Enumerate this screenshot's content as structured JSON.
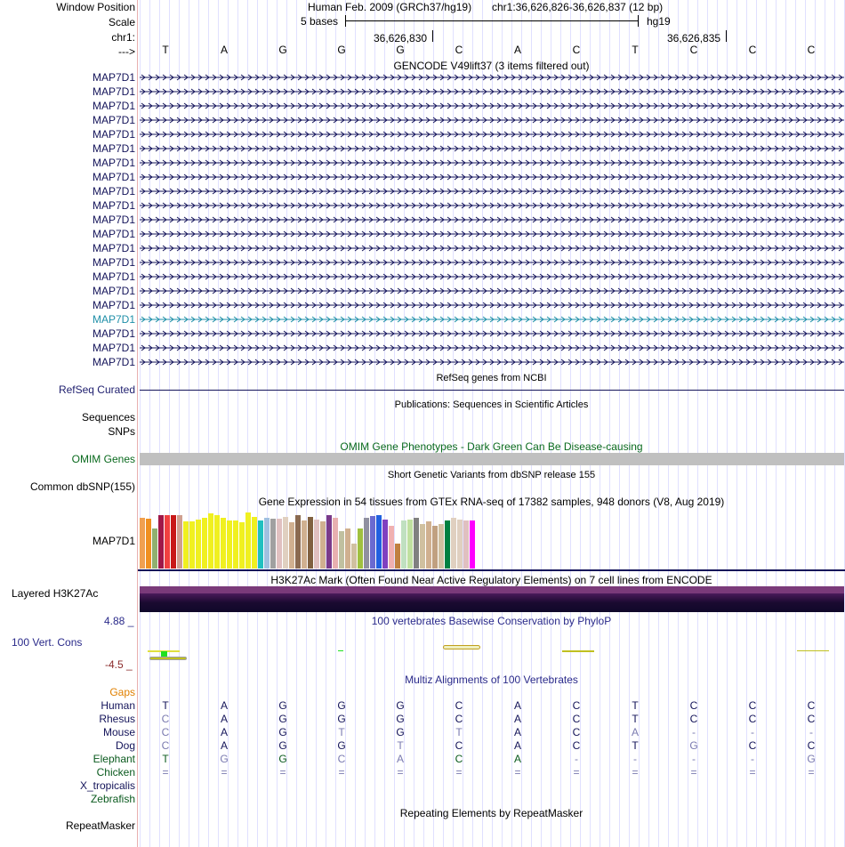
{
  "header": {
    "window_position_label": "Window Position",
    "assembly": "Human Feb. 2009 (GRCh37/hg19)",
    "position": "chr1:36,626,826-36,626,837 (12 bp)",
    "scale_label": "Scale",
    "scale_text": "5 bases",
    "db": "hg19",
    "chrom_label": "chr1:",
    "coord1": "36,626,830",
    "coord2": "36,626,835",
    "strand_label": "--->",
    "sequence": [
      "T",
      "A",
      "G",
      "G",
      "G",
      "C",
      "A",
      "C",
      "T",
      "C",
      "C",
      "C"
    ]
  },
  "gencode": {
    "title": "GENCODE V49lift37 (3 items filtered out)",
    "gene": "MAP7D1",
    "count": 21,
    "highlight_index": 17,
    "colors": {
      "normal": "#14145a",
      "highlight": "#1f8fa8"
    }
  },
  "refseq": {
    "title": "RefSeq genes from NCBI",
    "label": "RefSeq Curated"
  },
  "publications": {
    "title": "Publications: Sequences in Scientific Articles",
    "label": "Sequences"
  },
  "snps": {
    "label": "SNPs"
  },
  "omim": {
    "title": "OMIM Gene Phenotypes - Dark Green Can Be Disease-causing",
    "label": "OMIM Genes",
    "color": "#0a6a1e"
  },
  "dbsnp": {
    "title": "Short Genetic Variants from dbSNP release 155",
    "label": "Common dbSNP(155)"
  },
  "gtex": {
    "title": "Gene Expression in 54 tissues from GTEx RNA-seq of 17382 samples, 948 donors (V8, Aug 2019)",
    "label": "MAP7D1",
    "bars": [
      {
        "v": 0.95,
        "c": "#f0a050"
      },
      {
        "v": 0.94,
        "c": "#f09020"
      },
      {
        "v": 0.75,
        "c": "#90b070"
      },
      {
        "v": 1.0,
        "c": "#a01848"
      },
      {
        "v": 1.0,
        "c": "#f04040"
      },
      {
        "v": 1.0,
        "c": "#c81818"
      },
      {
        "v": 1.0,
        "c": "#d0a090"
      },
      {
        "v": 0.88,
        "c": "#f0f020"
      },
      {
        "v": 0.88,
        "c": "#f0f020"
      },
      {
        "v": 0.92,
        "c": "#f0f020"
      },
      {
        "v": 0.95,
        "c": "#f0f020"
      },
      {
        "v": 1.04,
        "c": "#f0f020"
      },
      {
        "v": 1.0,
        "c": "#f0f020"
      },
      {
        "v": 0.95,
        "c": "#f0f020"
      },
      {
        "v": 0.9,
        "c": "#f0f020"
      },
      {
        "v": 0.9,
        "c": "#f0f020"
      },
      {
        "v": 0.87,
        "c": "#f0f020"
      },
      {
        "v": 1.05,
        "c": "#f0f020"
      },
      {
        "v": 0.97,
        "c": "#f0f020"
      },
      {
        "v": 0.9,
        "c": "#20c0c0"
      },
      {
        "v": 0.95,
        "c": "#a0c0e0"
      },
      {
        "v": 0.94,
        "c": "#a0a0a0"
      },
      {
        "v": 0.94,
        "c": "#e0c0c0"
      },
      {
        "v": 0.96,
        "c": "#e0d0c0"
      },
      {
        "v": 0.86,
        "c": "#d0b090"
      },
      {
        "v": 1.0,
        "c": "#8a6a50"
      },
      {
        "v": 0.9,
        "c": "#d0b090"
      },
      {
        "v": 0.97,
        "c": "#806040"
      },
      {
        "v": 0.92,
        "c": "#e0c0c0"
      },
      {
        "v": 0.88,
        "c": "#d0b090"
      },
      {
        "v": 1.0,
        "c": "#7a3a8a"
      },
      {
        "v": 0.95,
        "c": "#e8b0b0"
      },
      {
        "v": 0.7,
        "c": "#c0c0a0"
      },
      {
        "v": 0.75,
        "c": "#d0b090"
      },
      {
        "v": 0.46,
        "c": "#d0c0a0"
      },
      {
        "v": 0.75,
        "c": "#a0c040"
      },
      {
        "v": 0.95,
        "c": "#9090a0"
      },
      {
        "v": 0.98,
        "c": "#6a6ad0"
      },
      {
        "v": 1.0,
        "c": "#2060e0"
      },
      {
        "v": 0.92,
        "c": "#8040c0"
      },
      {
        "v": 0.8,
        "c": "#f0b0b0"
      },
      {
        "v": 0.46,
        "c": "#c08040"
      },
      {
        "v": 0.9,
        "c": "#c0e0c0"
      },
      {
        "v": 0.92,
        "c": "#c0e0a0"
      },
      {
        "v": 0.95,
        "c": "#808080"
      },
      {
        "v": 0.84,
        "c": "#d0c0a0"
      },
      {
        "v": 0.88,
        "c": "#d0b090"
      },
      {
        "v": 0.8,
        "c": "#c0a080"
      },
      {
        "v": 0.84,
        "c": "#d0c0a0"
      },
      {
        "v": 0.9,
        "c": "#008040"
      },
      {
        "v": 0.95,
        "c": "#e0d0c0"
      },
      {
        "v": 0.92,
        "c": "#e0d0c0"
      },
      {
        "v": 0.9,
        "c": "#e0c0c0"
      },
      {
        "v": 0.9,
        "c": "#ff00ff"
      }
    ]
  },
  "h3k27ac": {
    "title": "H3K27Ac Mark (Often Found Near Active Regulatory Elements) on 7 cell lines from ENCODE",
    "label": "Layered H3K27Ac"
  },
  "phylop": {
    "title": "100 vertebrates Basewise Conservation by PhyloP",
    "label": "100 Vert. Cons",
    "max": "4.88 _",
    "min": "-4.5 _"
  },
  "multiz": {
    "title": "Multiz Alignments of 100 Vertebrates",
    "gaps_label": "Gaps",
    "species": [
      {
        "name": "Human",
        "bases": [
          "T",
          "A",
          "G",
          "G",
          "G",
          "C",
          "A",
          "C",
          "T",
          "C",
          "C",
          "C"
        ],
        "color": "#14145a",
        "dim": []
      },
      {
        "name": "Rhesus",
        "bases": [
          "C",
          "A",
          "G",
          "G",
          "G",
          "C",
          "A",
          "C",
          "T",
          "C",
          "C",
          "C"
        ],
        "color": "#14145a",
        "dim": [
          0
        ]
      },
      {
        "name": "Mouse",
        "bases": [
          "C",
          "A",
          "G",
          "T",
          "G",
          "T",
          "A",
          "C",
          "A",
          "-",
          "-",
          "-"
        ],
        "color": "#14145a",
        "dim": [
          0,
          3,
          5,
          8,
          9,
          10,
          11
        ]
      },
      {
        "name": "Dog",
        "bases": [
          "C",
          "A",
          "G",
          "G",
          "T",
          "C",
          "A",
          "C",
          "T",
          "G",
          "C",
          "C"
        ],
        "color": "#14145a",
        "dim": [
          0,
          4,
          9
        ]
      },
      {
        "name": "Elephant",
        "bases": [
          "T",
          "G",
          "G",
          "C",
          "A",
          "C",
          "A",
          "-",
          "-",
          "-",
          "-",
          "G"
        ],
        "color": "#0a5a1e",
        "dim": [
          1,
          3,
          4,
          7,
          8,
          9,
          10,
          11
        ]
      },
      {
        "name": "Chicken",
        "bases": [
          "=",
          "=",
          "=",
          "=",
          "=",
          "=",
          "=",
          "=",
          "=",
          "=",
          "=",
          "="
        ],
        "color": "#0a5a1e",
        "dim": [
          0,
          1,
          2,
          3,
          4,
          5,
          6,
          7,
          8,
          9,
          10,
          11
        ]
      },
      {
        "name": "X_tropicalis",
        "bases": [],
        "color": "#14145a",
        "dim": []
      },
      {
        "name": "Zebrafish",
        "bases": [],
        "color": "#0a5a1e",
        "dim": []
      }
    ]
  },
  "repeatmasker": {
    "title": "Repeating Elements by RepeatMasker",
    "label": "RepeatMasker"
  },
  "colors": {
    "navy": "#1e1e6e",
    "gaps": "#e08000",
    "phylop_scale": "#8a2a2a",
    "phylop_title": "#2a2a8a",
    "gray_bar": "#c0c0c0",
    "side_border": "#e8b0b0"
  }
}
